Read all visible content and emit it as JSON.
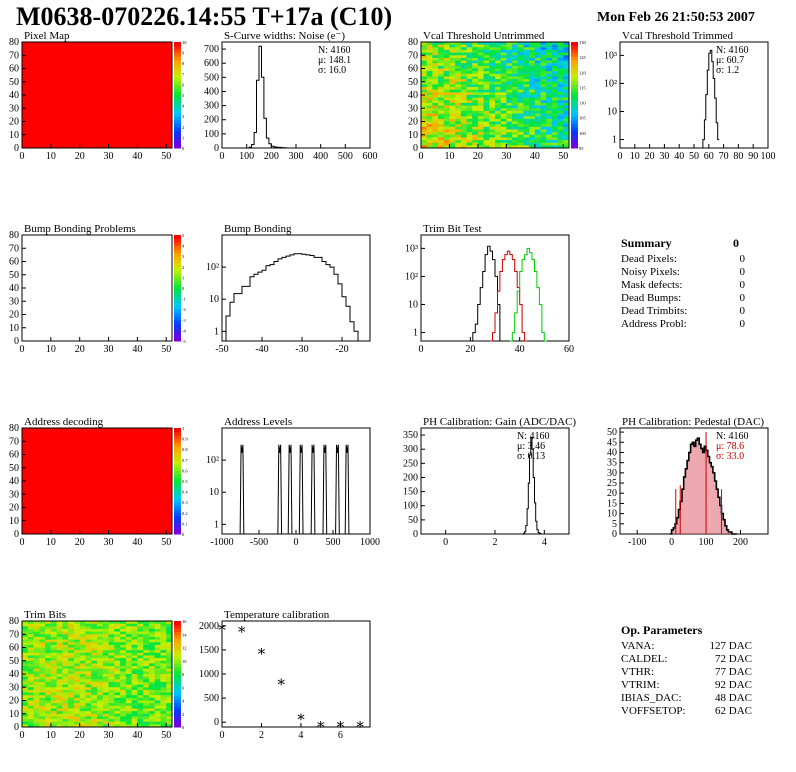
{
  "page": {
    "title": "M0638-070226.14:55 T+17a (C10)",
    "date": "Mon Feb 26 21:50:53 2007"
  },
  "colors": {
    "hot_red": "#ff0000",
    "trim_red": "#cc0000",
    "trim_green": "#00cc00",
    "stats_red": "#cc0000",
    "pedestal_fill": "#e06070"
  },
  "chart_data": [
    {
      "id": "pixel-map",
      "type": "heatmap",
      "title": "Pixel Map",
      "xlim": [
        0,
        52
      ],
      "ylim": [
        0,
        80
      ],
      "xticks": [
        "0",
        "10",
        "20",
        "30",
        "40",
        "50"
      ],
      "yticks": [
        "0",
        "10",
        "20",
        "30",
        "40",
        "50",
        "60",
        "70",
        "80"
      ],
      "palette": "uniform",
      "value": 10,
      "zticks": [
        "0",
        "1",
        "2",
        "3",
        "4",
        "5",
        "6",
        "7",
        "8",
        "9",
        "10"
      ]
    },
    {
      "id": "scurve-widths",
      "type": "bar",
      "title": "S-Curve widths: Noise (e⁻)",
      "xlim": [
        0,
        600
      ],
      "ylim": [
        0,
        750
      ],
      "xticks": [
        "0",
        "100",
        "200",
        "300",
        "400",
        "500",
        "600"
      ],
      "yticks": [
        "0",
        "100",
        "200",
        "300",
        "400",
        "500",
        "600",
        "700"
      ],
      "hist": {
        "x": [
          100,
          110,
          120,
          130,
          140,
          150,
          160,
          170,
          180,
          190,
          200,
          210,
          220,
          230,
          240,
          250,
          260
        ],
        "y": [
          0,
          5,
          25,
          110,
          480,
          720,
          500,
          210,
          70,
          30,
          12,
          8,
          6,
          4,
          3,
          2,
          0
        ]
      },
      "stats": [
        {
          "k": "N:",
          "v": "4160"
        },
        {
          "k": "μ:",
          "v": "148.1"
        },
        {
          "k": "σ:",
          "v": "16.0"
        }
      ]
    },
    {
      "id": "vcal-untrimmed",
      "type": "heatmap",
      "title": "Vcal Threshold Untrimmed",
      "xlim": [
        0,
        52
      ],
      "ylim": [
        0,
        80
      ],
      "xticks": [
        "0",
        "10",
        "20",
        "30",
        "40",
        "50"
      ],
      "yticks": [
        "0",
        "10",
        "20",
        "30",
        "40",
        "50",
        "60",
        "70",
        "80"
      ],
      "palette": "noise",
      "zticks": [
        "95",
        "100",
        "105",
        "110",
        "115",
        "120",
        "125",
        "130"
      ]
    },
    {
      "id": "vcal-trimmed",
      "type": "bar",
      "title": "Vcal Threshold Trimmed",
      "xlim": [
        0,
        100
      ],
      "ylim": [
        0.5,
        3000
      ],
      "yscale": "log",
      "xticks": [
        "0",
        "10",
        "20",
        "30",
        "40",
        "50",
        "60",
        "70",
        "80",
        "90",
        "100"
      ],
      "yticks": [
        "1",
        "10",
        "10²",
        "10³"
      ],
      "hist": {
        "x": [
          56,
          57,
          58,
          59,
          60,
          61,
          62,
          63,
          64,
          65,
          66
        ],
        "y": [
          1,
          5,
          40,
          300,
          1200,
          1500,
          600,
          150,
          30,
          4,
          1
        ]
      },
      "stats": [
        {
          "k": "N:",
          "v": "4160"
        },
        {
          "k": "μ:",
          "v": "60.7"
        },
        {
          "k": "σ:",
          "v": "1.2"
        }
      ]
    },
    {
      "id": "bump-problems",
      "type": "heatmap",
      "title": "Bump Bonding Problems",
      "xlim": [
        0,
        52
      ],
      "ylim": [
        0,
        80
      ],
      "xticks": [
        "0",
        "10",
        "20",
        "30",
        "40",
        "50"
      ],
      "yticks": [
        "0",
        "10",
        "20",
        "30",
        "40",
        "50",
        "60",
        "70",
        "80"
      ],
      "palette": "empty",
      "zticks": [
        "-5",
        "-4",
        "-3",
        "-2",
        "-1",
        "0",
        "1",
        "2",
        "3",
        "4",
        "5"
      ]
    },
    {
      "id": "bump-bonding",
      "type": "bar",
      "title": "Bump Bonding",
      "xlim": [
        -50,
        -13
      ],
      "ylim": [
        0.5,
        1000
      ],
      "yscale": "log",
      "xticks": [
        "-50",
        "-40",
        "-30",
        "-20"
      ],
      "yticks": [
        "1",
        "10",
        "10²"
      ],
      "hist": {
        "x": [
          -50,
          -49,
          -48,
          -47,
          -46,
          -45,
          -44,
          -43,
          -42,
          -41,
          -40,
          -39,
          -38,
          -37,
          -36,
          -35,
          -34,
          -33,
          -32,
          -31,
          -30,
          -29,
          -28,
          -27,
          -26,
          -25,
          -24,
          -23,
          -22,
          -21,
          -20,
          -19,
          -18,
          -17,
          -16
        ],
        "y": [
          0.5,
          3,
          8,
          15,
          15,
          25,
          25,
          50,
          60,
          70,
          80,
          110,
          120,
          150,
          180,
          200,
          220,
          240,
          260,
          260,
          250,
          240,
          230,
          200,
          200,
          150,
          120,
          100,
          60,
          30,
          12,
          6,
          2,
          1,
          0.5
        ]
      }
    },
    {
      "id": "trim-bit-test",
      "type": "line",
      "title": "Trim Bit Test",
      "xlim": [
        0,
        60
      ],
      "ylim": [
        0.5,
        3000
      ],
      "yscale": "log",
      "xticks": [
        "0",
        "20",
        "40",
        "60"
      ],
      "yticks": [
        "1",
        "10",
        "10²",
        "10³"
      ],
      "series": [
        {
          "color": "#000000",
          "x": [
            20,
            21,
            22,
            23,
            24,
            25,
            26,
            27,
            28,
            29,
            30,
            31,
            32
          ],
          "y": [
            0.5,
            1,
            2,
            10,
            40,
            150,
            600,
            1200,
            800,
            400,
            100,
            10,
            0.5
          ]
        },
        {
          "color": "#cc0000",
          "x": [
            28,
            29,
            30,
            31,
            32,
            33,
            34,
            35,
            36,
            37,
            38,
            39,
            40,
            41,
            42
          ],
          "y": [
            0.5,
            1,
            5,
            30,
            150,
            400,
            600,
            800,
            600,
            400,
            150,
            40,
            10,
            1,
            0.5
          ]
        },
        {
          "color": "#00cc00",
          "x": [
            36,
            37,
            38,
            39,
            40,
            41,
            42,
            43,
            44,
            45,
            46,
            47,
            48,
            49,
            50
          ],
          "y": [
            0.5,
            1,
            5,
            30,
            150,
            400,
            600,
            1000,
            700,
            400,
            150,
            40,
            10,
            1,
            0.5
          ]
        }
      ]
    },
    {
      "id": "address-decoding",
      "type": "heatmap",
      "title": "Address decoding",
      "xlim": [
        0,
        52
      ],
      "ylim": [
        0,
        80
      ],
      "xticks": [
        "0",
        "10",
        "20",
        "30",
        "40",
        "50"
      ],
      "yticks": [
        "0",
        "10",
        "20",
        "30",
        "40",
        "50",
        "60",
        "70",
        "80"
      ],
      "palette": "uniform",
      "value": 1,
      "zticks": [
        "0",
        "0.1",
        "0.2",
        "0.3",
        "0.4",
        "0.5",
        "0.6",
        "0.7",
        "0.8",
        "0.9",
        "1"
      ]
    },
    {
      "id": "address-levels",
      "type": "bar",
      "title": "Address Levels",
      "xlim": [
        -1000,
        1000
      ],
      "ylim": [
        0.5,
        1000
      ],
      "yscale": "log",
      "xticks": [
        "-1000",
        "-500",
        "0",
        "500",
        "1000"
      ],
      "yticks": [
        "1",
        "10",
        "10²"
      ],
      "peaks": [
        -730,
        -220,
        -80,
        70,
        230,
        390,
        560,
        690
      ],
      "peak_height": 300,
      "peak_width": 25
    },
    {
      "id": "ph-gain",
      "type": "bar",
      "title": "PH Calibration: Gain (ADC/DAC)",
      "xlim": [
        -1,
        5
      ],
      "ylim": [
        0,
        375
      ],
      "xticks": [
        "0",
        "2",
        "4"
      ],
      "yticks": [
        "0",
        "50",
        "100",
        "150",
        "200",
        "250",
        "300",
        "350"
      ],
      "hist": {
        "x": [
          3.1,
          3.15,
          3.2,
          3.25,
          3.3,
          3.35,
          3.4,
          3.45,
          3.5,
          3.55,
          3.6,
          3.65,
          3.7,
          3.75,
          3.8,
          3.85
        ],
        "y": [
          0,
          2,
          8,
          30,
          90,
          180,
          280,
          340,
          300,
          200,
          110,
          45,
          15,
          5,
          2,
          0
        ]
      },
      "stats": [
        {
          "k": "N:",
          "v": "4160"
        },
        {
          "k": "μ:",
          "v": "3.46"
        },
        {
          "k": "σ:",
          "v": "0.13"
        }
      ]
    },
    {
      "id": "ph-pedestal",
      "type": "bar",
      "title": "PH Calibration: Pedestal (DAC)",
      "xlim": [
        -150,
        280
      ],
      "ylim": [
        0,
        52
      ],
      "xticks": [
        "-100",
        "0",
        "100",
        "200"
      ],
      "yticks": [
        "0",
        "5",
        "10",
        "15",
        "20",
        "25",
        "30",
        "35",
        "40",
        "45",
        "50"
      ],
      "hist": {
        "x": [
          -5,
          0,
          5,
          10,
          15,
          20,
          25,
          30,
          35,
          40,
          45,
          50,
          55,
          60,
          65,
          70,
          75,
          80,
          85,
          90,
          95,
          100,
          105,
          110,
          115,
          120,
          125,
          130,
          135,
          140,
          145,
          150,
          155,
          160,
          165,
          170,
          175
        ],
        "y": [
          0,
          2,
          3,
          5,
          8,
          12,
          16,
          22,
          28,
          32,
          36,
          40,
          44,
          45,
          43,
          46,
          47,
          44,
          42,
          40,
          43,
          41,
          38,
          35,
          33,
          30,
          26,
          22,
          18,
          14,
          10,
          7,
          4,
          2,
          1,
          1,
          0
        ]
      },
      "spikes": [
        {
          "x": 12,
          "y": 22
        },
        {
          "x": 25,
          "y": 24
        },
        {
          "x": 100,
          "y": 50
        },
        {
          "x": 145,
          "y": 22
        }
      ],
      "stats": [
        {
          "k": "N:",
          "v": "4160",
          "red": false
        },
        {
          "k": "μ:",
          "v": "78.6",
          "red": true
        },
        {
          "k": "σ:",
          "v": "33.0",
          "red": true
        }
      ]
    },
    {
      "id": "trim-bits",
      "type": "heatmap",
      "title": "Trim Bits",
      "xlim": [
        0,
        52
      ],
      "ylim": [
        0,
        80
      ],
      "xticks": [
        "0",
        "10",
        "20",
        "30",
        "40",
        "50"
      ],
      "yticks": [
        "0",
        "10",
        "20",
        "30",
        "40",
        "50",
        "60",
        "70",
        "80"
      ],
      "palette": "trim",
      "zticks": [
        "0",
        "2",
        "4",
        "6",
        "8",
        "10",
        "12",
        "14",
        "16"
      ]
    },
    {
      "id": "temperature-calibration",
      "type": "scatter",
      "title": "Temperature calibration",
      "xlim": [
        0,
        7.5
      ],
      "ylim": [
        -100,
        2100
      ],
      "xticks": [
        "0",
        "2",
        "4",
        "6"
      ],
      "yticks": [
        "0",
        "500",
        "1000",
        "1500",
        "2000"
      ],
      "x": [
        0,
        1,
        2,
        3,
        4,
        5,
        6,
        7
      ],
      "y": [
        2000,
        1950,
        1500,
        870,
        140,
        -20,
        -20,
        -20
      ]
    }
  ],
  "summary": {
    "title": "Summary",
    "total": "0",
    "rows": [
      {
        "label": "Dead Pixels:",
        "value": "0"
      },
      {
        "label": "Noisy Pixels:",
        "value": "0"
      },
      {
        "label": "Mask defects:",
        "value": "0"
      },
      {
        "label": "Dead Bumps:",
        "value": "0"
      },
      {
        "label": "Dead Trimbits:",
        "value": "0"
      },
      {
        "label": "Address Probl:",
        "value": "0"
      }
    ]
  },
  "op_params": {
    "title": "Op. Parameters",
    "rows": [
      {
        "label": "VANA:",
        "value": "127 DAC"
      },
      {
        "label": "CALDEL:",
        "value": "72 DAC"
      },
      {
        "label": "VTHR:",
        "value": "77 DAC"
      },
      {
        "label": "VTRIM:",
        "value": "92 DAC"
      },
      {
        "label": "IBIAS_DAC:",
        "value": "48 DAC"
      },
      {
        "label": "VOFFSETOP:",
        "value": "62 DAC"
      }
    ]
  }
}
